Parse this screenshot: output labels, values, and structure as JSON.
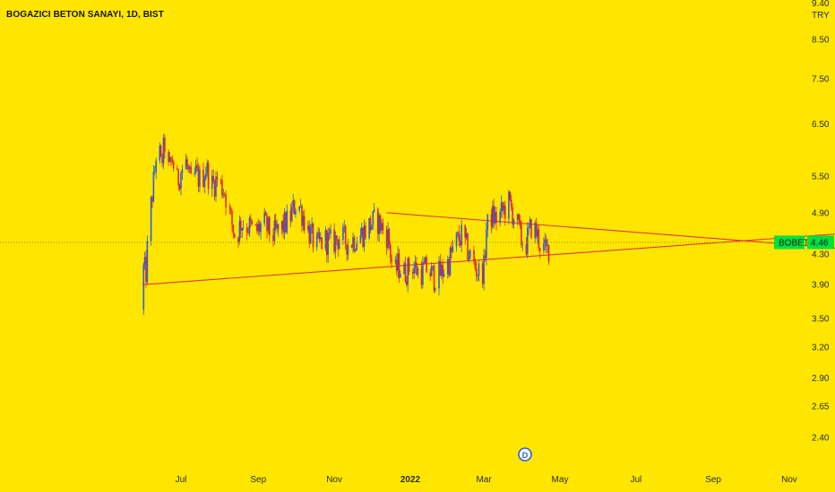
{
  "header": {
    "title": "BOGAZICI BETON SANAYI, 1D, BIST",
    "currency": "TRY",
    "cut_top_label": "9.40"
  },
  "colors": {
    "background": "#ffe600",
    "up_candle": "#2b5fd9",
    "down_candle": "#e0261f",
    "trendline": "#e53935",
    "last_price_badge": "#00e040"
  },
  "badges": {
    "symbol": "BOBET",
    "last_price": "4.46"
  },
  "events": {
    "dividend_marker": "D"
  },
  "chart_data": {
    "type": "candlestick",
    "title": "BOGAZICI BETON SANAYI, 1D, BIST",
    "y_scale": "log",
    "y_ticks": [
      8.5,
      7.5,
      6.5,
      5.5,
      4.9,
      4.3,
      3.9,
      3.5,
      3.2,
      2.9,
      2.65,
      2.4
    ],
    "y_tick_labels": [
      "8.50",
      "7.50",
      "6.50",
      "5.50",
      "4.90",
      "4.30",
      "3.90",
      "3.50",
      "3.20",
      "2.90",
      "2.65",
      "2.40"
    ],
    "x_tick_labels": [
      "Jul",
      "Sep",
      "Nov",
      "2022",
      "Mar",
      "May",
      "Jul",
      "Sep",
      "Nov"
    ],
    "x_ticks": [
      "2021-07-01",
      "2021-09-01",
      "2021-11-01",
      "2022-01-01",
      "2022-03-01",
      "2022-05-01",
      "2022-07-01",
      "2022-09-01",
      "2022-11-01"
    ],
    "last_price": 4.46,
    "price_path": [
      [
        "2021-05-31",
        3.6
      ],
      [
        "2021-06-01",
        4.1
      ],
      [
        "2021-06-03",
        4.05
      ],
      [
        "2021-06-05",
        4.65
      ],
      [
        "2021-06-08",
        5.2
      ],
      [
        "2021-06-10",
        5.6
      ],
      [
        "2021-06-12",
        6.2
      ],
      [
        "2021-06-15",
        5.7
      ],
      [
        "2021-06-18",
        6.1
      ],
      [
        "2021-06-21",
        5.6
      ],
      [
        "2021-06-24",
        5.8
      ],
      [
        "2021-06-28",
        5.4
      ],
      [
        "2021-07-01",
        5.6
      ],
      [
        "2021-07-05",
        5.75
      ],
      [
        "2021-07-09",
        5.35
      ],
      [
        "2021-07-13",
        5.55
      ],
      [
        "2021-07-17",
        5.4
      ],
      [
        "2021-07-21",
        5.65
      ],
      [
        "2021-07-26",
        5.35
      ],
      [
        "2021-07-30",
        5.45
      ],
      [
        "2021-08-05",
        5.25
      ],
      [
        "2021-08-10",
        4.8
      ],
      [
        "2021-08-14",
        4.5
      ],
      [
        "2021-08-18",
        4.75
      ],
      [
        "2021-08-24",
        4.7
      ],
      [
        "2021-08-30",
        4.6
      ],
      [
        "2021-09-05",
        4.75
      ],
      [
        "2021-09-12",
        4.55
      ],
      [
        "2021-09-19",
        4.65
      ],
      [
        "2021-09-26",
        4.8
      ],
      [
        "2021-10-02",
        5.1
      ],
      [
        "2021-10-07",
        4.85
      ],
      [
        "2021-10-12",
        4.6
      ],
      [
        "2021-10-18",
        4.4
      ],
      [
        "2021-10-24",
        4.5
      ],
      [
        "2021-10-30",
        4.45
      ],
      [
        "2021-11-06",
        4.55
      ],
      [
        "2021-11-12",
        4.45
      ],
      [
        "2021-11-18",
        4.52
      ],
      [
        "2021-11-24",
        4.6
      ],
      [
        "2021-11-30",
        4.72
      ],
      [
        "2021-12-05",
        4.8
      ],
      [
        "2021-12-10",
        4.65
      ],
      [
        "2021-12-14",
        4.55
      ],
      [
        "2021-12-17",
        4.2
      ],
      [
        "2021-12-19",
        4.0
      ],
      [
        "2021-12-22",
        4.15
      ],
      [
        "2021-12-27",
        4.05
      ],
      [
        "2022-01-03",
        4.15
      ],
      [
        "2022-01-08",
        4.05
      ],
      [
        "2022-01-14",
        4.1
      ],
      [
        "2022-01-20",
        4.0
      ],
      [
        "2022-01-26",
        4.05
      ],
      [
        "2022-02-01",
        4.2
      ],
      [
        "2022-02-06",
        4.45
      ],
      [
        "2022-02-11",
        4.55
      ],
      [
        "2022-02-16",
        4.35
      ],
      [
        "2022-02-21",
        4.15
      ],
      [
        "2022-02-25",
        4.05
      ],
      [
        "2022-03-01",
        4.1
      ],
      [
        "2022-03-03",
        4.65
      ],
      [
        "2022-03-07",
        4.85
      ],
      [
        "2022-03-12",
        4.8
      ],
      [
        "2022-03-17",
        4.95
      ],
      [
        "2022-03-21",
        5.05
      ],
      [
        "2022-03-25",
        4.85
      ],
      [
        "2022-03-28",
        4.7
      ],
      [
        "2022-03-31",
        4.5
      ],
      [
        "2022-04-04",
        4.45
      ],
      [
        "2022-04-08",
        4.7
      ],
      [
        "2022-04-12",
        4.6
      ],
      [
        "2022-04-16",
        4.4
      ],
      [
        "2022-04-20",
        4.32
      ],
      [
        "2022-04-24",
        4.46
      ]
    ],
    "trendlines": [
      {
        "from": [
          "2021-05-31",
          3.9
        ],
        "to": [
          "2022-12-31",
          4.61
        ]
      },
      {
        "from": [
          "2021-12-13",
          4.9
        ],
        "to": [
          "2022-12-31",
          4.35
        ]
      }
    ]
  }
}
